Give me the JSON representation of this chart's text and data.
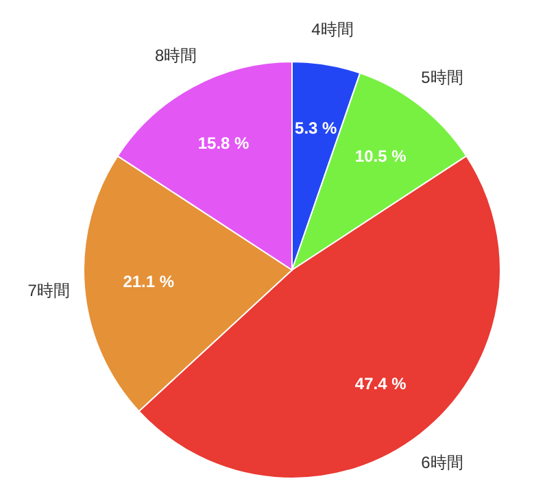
{
  "chart_data": {
    "type": "pie",
    "categories": [
      "4時間",
      "5時間",
      "6時間",
      "7時間",
      "8時間"
    ],
    "values": [
      5.3,
      10.5,
      47.4,
      21.1,
      15.8
    ],
    "colors": [
      "#2346f5",
      "#77f042",
      "#e93a33",
      "#e59137",
      "#e357f5"
    ],
    "value_labels": [
      "5.3 %",
      "10.5 %",
      "47.4 %",
      "21.1 %",
      "15.8 %"
    ]
  }
}
